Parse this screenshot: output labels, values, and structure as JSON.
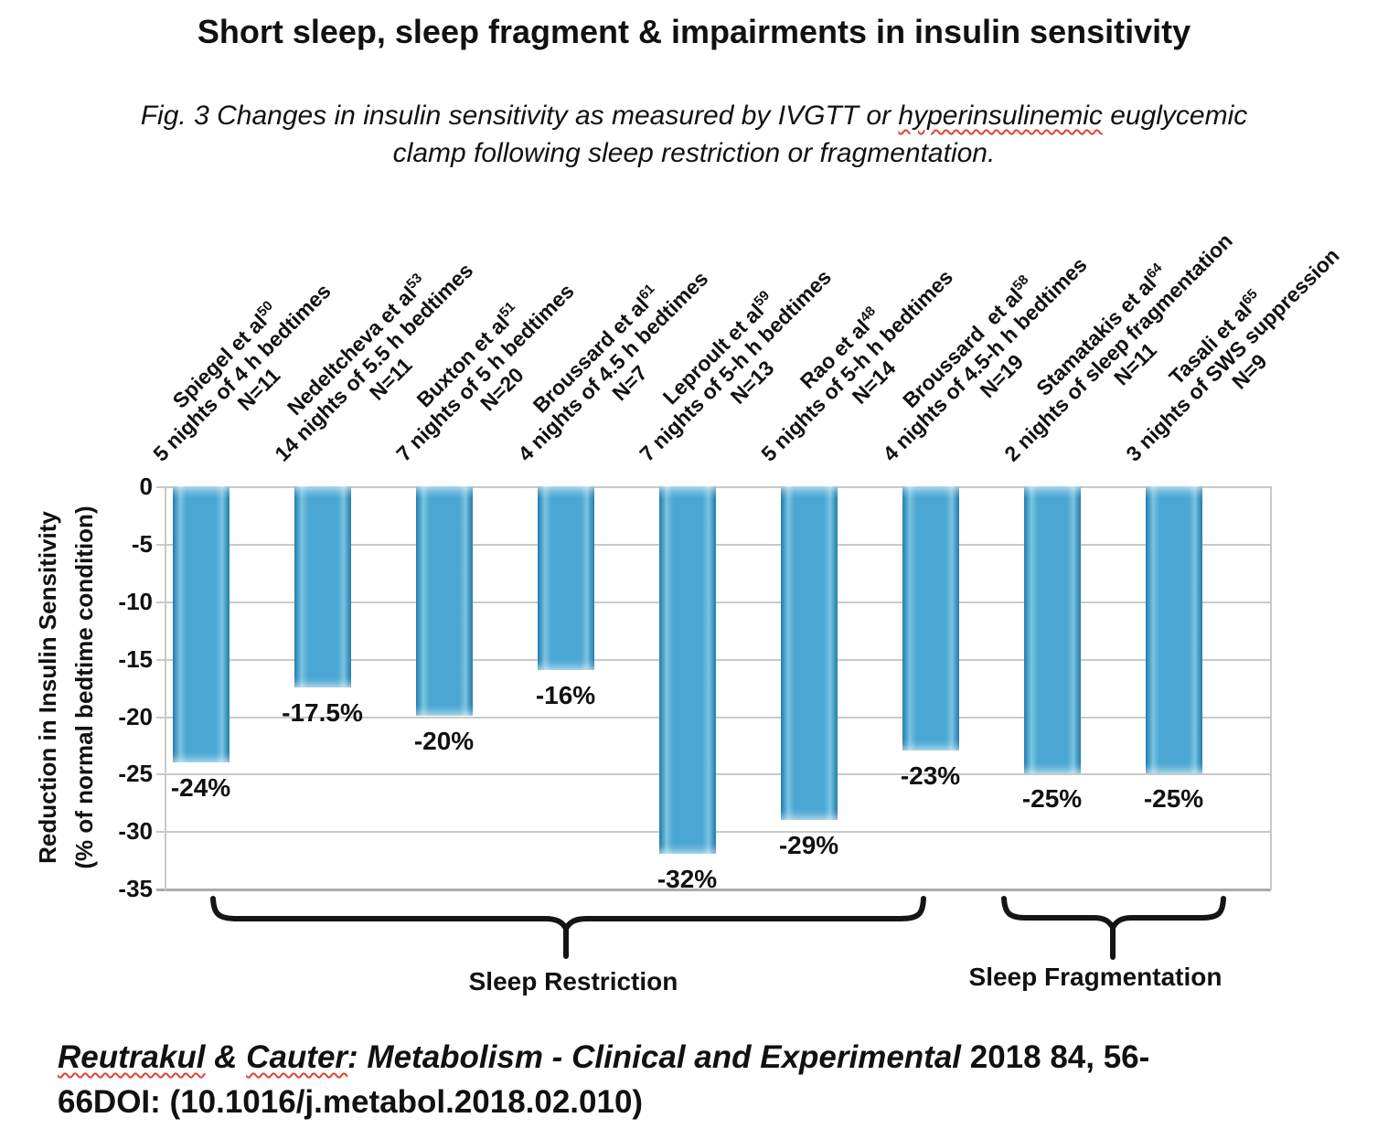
{
  "title": "Short sleep, sleep fragment & impairments in insulin sensitivity",
  "subtitle": {
    "line1_before": "Fig. 3 Changes in insulin sensitivity as measured by IVGTT or ",
    "line1_wavy": "hyperinsulinemic",
    "line1_after": " euglycemic",
    "line2": "clamp following sleep restriction or fragmentation."
  },
  "chart_data": {
    "type": "bar",
    "title": "",
    "ylabel_line1": "Reduction in Insulin Sensitivity",
    "ylabel_line2": "(% of normal bedtime condition)",
    "ylim": [
      -35,
      0
    ],
    "yticks": [
      0,
      -5,
      -10,
      -15,
      -20,
      -25,
      -30,
      -35
    ],
    "grid": "horizontal",
    "bar_color": "#4AA7D3",
    "wavy_underline_color": "#E14234",
    "categories": [
      "Spiegel et al⁵⁰ 5 nights of 4 h bedtimes N=11",
      "Nedeltcheva et al⁵³ 14 nights of 5.5 h bedtimes N=11",
      "Buxton et al⁵¹ 7 nights of 5 h bedtimes N=20",
      "Broussard et al⁶¹ 4 nights of 4.5 h bedtimes N=7",
      "Leproult et al⁵⁹ 7 nights of 5-h h bedtimes N=13",
      "Rao et al⁴⁸ 5 nights of 5-h h bedtimes N=14",
      "Broussard  et al⁵⁸ 4 nights of 4.5-h h bedtimes N=19",
      "Stamatakis et al⁶⁴ 2 nights of sleep fragmentation N=11",
      "Tasali et al⁶⁵ 3 nights of SWS suppression N=9"
    ],
    "values": [
      -24,
      -17.5,
      -20,
      -16,
      -32,
      -29,
      -23,
      -25,
      -25
    ],
    "points": [
      {
        "author": "Spiegel et al",
        "ref": "50",
        "condition": "5 nights of 4 h bedtimes",
        "n": "N=11",
        "value": -24,
        "label": "-24%"
      },
      {
        "author": "Nedeltcheva et al",
        "ref": "53",
        "condition": "14 nights of 5.5 h bedtimes",
        "n": "N=11",
        "value": -17.5,
        "label": "-17.5%"
      },
      {
        "author": "Buxton et al",
        "ref": "51",
        "condition": "7 nights of 5 h bedtimes",
        "n": "N=20",
        "value": -20,
        "label": "-20%"
      },
      {
        "author": "Broussard et al",
        "ref": "61",
        "condition": "4 nights of 4.5 h bedtimes",
        "n": "N=7",
        "value": -16,
        "label": "-16%"
      },
      {
        "author": "Leproult et al",
        "ref": "59",
        "condition": "7 nights of 5-h h bedtimes",
        "n": "N=13",
        "value": -32,
        "label": "-32%"
      },
      {
        "author": "Rao et al",
        "ref": "48",
        "condition": "5 nights of 5-h h bedtimes",
        "n": "N=14",
        "value": -29,
        "label": "-29%"
      },
      {
        "author": "Broussard  et al",
        "ref": "58",
        "condition": "4 nights of 4.5-h h bedtimes",
        "n": "N=19",
        "value": -23,
        "label": "-23%"
      },
      {
        "author": "Stamatakis et al",
        "ref": "64",
        "condition": "2 nights of sleep fragmentation",
        "n": "N=11",
        "value": -25,
        "label": "-25%"
      },
      {
        "author": "Tasali et al",
        "ref": "65",
        "condition": "3 nights of SWS suppression",
        "n": "N=9",
        "value": -25,
        "label": "-25%"
      }
    ],
    "groups": [
      {
        "label": "Sleep Restriction",
        "bars": "1-7"
      },
      {
        "label": "Sleep Fragmentation",
        "bars": "8-9"
      }
    ]
  },
  "citation": {
    "name1": "Reutrakul",
    "sep": " & ",
    "name2": "Cauter",
    "journal": ": Metabolism - Clinical and Experimental",
    "tail1": " 2018 84, 56-",
    "line2": "66DOI: (10.1016/j.metabol.2018.02.010)"
  }
}
